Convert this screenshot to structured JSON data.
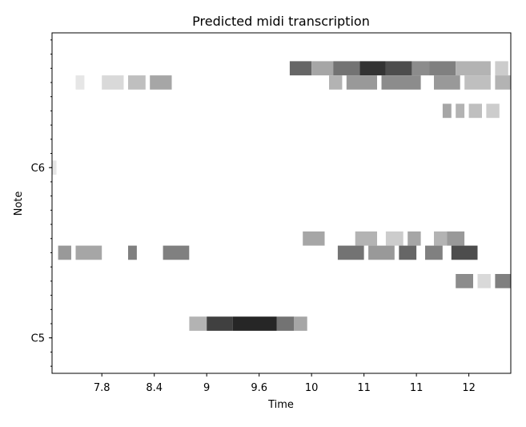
{
  "chart_data": {
    "type": "heatmap",
    "title": "Predicted midi transcription",
    "xlabel": "Time",
    "ylabel": "Note",
    "xlim": [
      7.23,
      12.48
    ],
    "ylim": [
      69.5,
      93.5
    ],
    "x_ticks": [
      {
        "value": 7.8,
        "label": "7.8"
      },
      {
        "value": 8.4,
        "label": "8.4"
      },
      {
        "value": 9.0,
        "label": "9"
      },
      {
        "value": 9.6,
        "label": "9.6"
      },
      {
        "value": 10.2,
        "label": "10"
      },
      {
        "value": 10.8,
        "label": "11"
      },
      {
        "value": 11.4,
        "label": "11"
      },
      {
        "value": 12.0,
        "label": "12"
      }
    ],
    "y_ticks": [
      {
        "value": 72,
        "label": "C5"
      },
      {
        "value": 84,
        "label": "C6"
      }
    ],
    "colormap": "gray_r",
    "grid": false,
    "rows": [
      {
        "note": 91,
        "segments": [
          [
            9.95,
            10.2,
            0.6
          ],
          [
            10.2,
            10.45,
            0.35
          ],
          [
            10.45,
            10.75,
            0.55
          ],
          [
            10.75,
            11.05,
            0.8
          ],
          [
            11.05,
            11.35,
            0.7
          ],
          [
            11.35,
            11.55,
            0.45
          ],
          [
            11.55,
            11.85,
            0.5
          ],
          [
            11.85,
            12.25,
            0.3
          ],
          [
            12.3,
            12.45,
            0.2
          ]
        ]
      },
      {
        "note": 90,
        "segments": [
          [
            7.5,
            7.6,
            0.1
          ],
          [
            7.8,
            8.05,
            0.15
          ],
          [
            8.1,
            8.3,
            0.25
          ],
          [
            8.35,
            8.6,
            0.35
          ],
          [
            10.4,
            10.55,
            0.3
          ],
          [
            10.6,
            10.95,
            0.4
          ],
          [
            11.0,
            11.45,
            0.45
          ],
          [
            11.6,
            11.9,
            0.4
          ],
          [
            11.95,
            12.25,
            0.25
          ],
          [
            12.3,
            12.48,
            0.3
          ]
        ]
      },
      {
        "note": 88,
        "segments": [
          [
            11.7,
            11.8,
            0.35
          ],
          [
            11.85,
            11.95,
            0.3
          ],
          [
            12.0,
            12.15,
            0.25
          ],
          [
            12.2,
            12.35,
            0.2
          ]
        ]
      },
      {
        "note": 84,
        "segments": [
          [
            7.23,
            7.28,
            0.1
          ]
        ]
      },
      {
        "note": 79,
        "segments": [
          [
            10.1,
            10.35,
            0.35
          ],
          [
            10.7,
            10.95,
            0.3
          ],
          [
            11.05,
            11.25,
            0.2
          ],
          [
            11.3,
            11.45,
            0.35
          ],
          [
            11.6,
            11.75,
            0.3
          ],
          [
            11.75,
            11.95,
            0.4
          ]
        ]
      },
      {
        "note": 78,
        "segments": [
          [
            7.3,
            7.45,
            0.4
          ],
          [
            7.5,
            7.8,
            0.35
          ],
          [
            8.1,
            8.2,
            0.5
          ],
          [
            8.5,
            8.8,
            0.5
          ],
          [
            10.5,
            10.8,
            0.55
          ],
          [
            10.85,
            11.15,
            0.4
          ],
          [
            11.2,
            11.4,
            0.6
          ],
          [
            11.5,
            11.7,
            0.5
          ],
          [
            11.8,
            12.1,
            0.7
          ]
        ]
      },
      {
        "note": 76,
        "segments": [
          [
            11.85,
            12.05,
            0.45
          ],
          [
            12.1,
            12.25,
            0.15
          ],
          [
            12.3,
            12.48,
            0.5
          ]
        ]
      },
      {
        "note": 73,
        "segments": [
          [
            8.8,
            9.0,
            0.3
          ],
          [
            9.0,
            9.3,
            0.75
          ],
          [
            9.3,
            9.8,
            0.85
          ],
          [
            9.8,
            10.0,
            0.55
          ],
          [
            10.0,
            10.15,
            0.35
          ]
        ]
      }
    ]
  }
}
